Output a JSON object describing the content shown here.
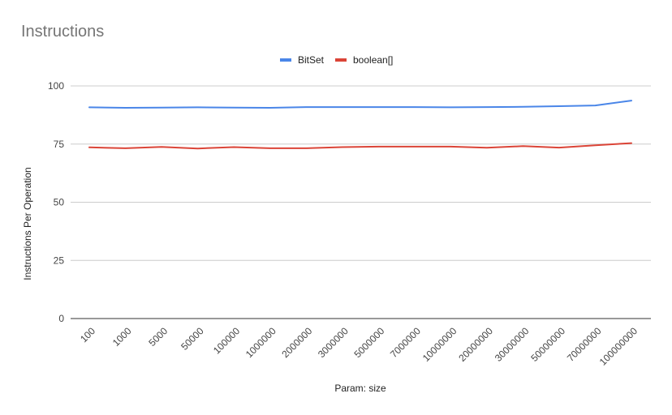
{
  "chart_data": {
    "type": "line",
    "title": "Instructions",
    "xlabel": "Param: size",
    "ylabel": "Instructions Per Operation",
    "ylim": [
      0,
      100
    ],
    "yticks": [
      0,
      25,
      50,
      75,
      100
    ],
    "grid": true,
    "legend_position": "top",
    "categories": [
      "100",
      "1000",
      "5000",
      "50000",
      "100000",
      "1000000",
      "2000000",
      "3000000",
      "5000000",
      "7000000",
      "10000000",
      "20000000",
      "30000000",
      "50000000",
      "70000000",
      "100000000"
    ],
    "series": [
      {
        "name": "BitSet",
        "color": "#4a86e8",
        "values": [
          90.8,
          90.6,
          90.7,
          90.8,
          90.7,
          90.6,
          90.9,
          90.9,
          90.9,
          90.9,
          90.8,
          90.9,
          91.0,
          91.3,
          91.6,
          93.7
        ]
      },
      {
        "name": "boolean[]",
        "color": "#db4437",
        "values": [
          73.6,
          73.2,
          73.8,
          73.1,
          73.7,
          73.2,
          73.2,
          73.7,
          73.9,
          73.9,
          73.9,
          73.4,
          74.1,
          73.5,
          74.5,
          75.4
        ]
      }
    ]
  }
}
